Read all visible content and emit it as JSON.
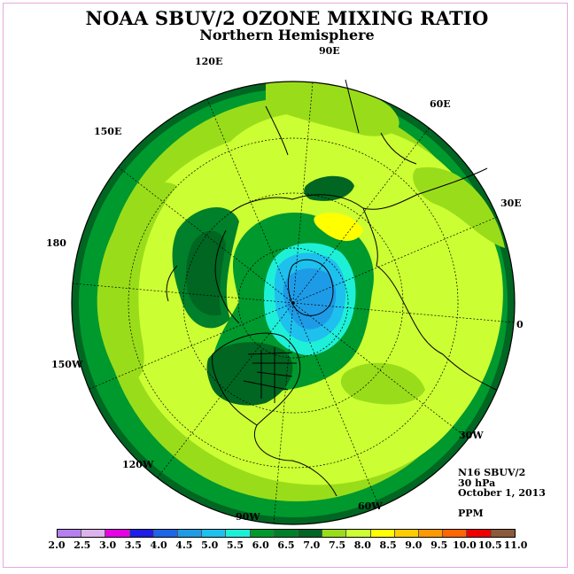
{
  "title": "NOAA SBUV/2 OZONE MIXING RATIO",
  "subtitle": "Northern Hemisphere",
  "longitude_labels": [
    "90E",
    "60E",
    "30E",
    "0",
    "30W",
    "60W",
    "90W",
    "120W",
    "150W",
    "180",
    "150E",
    "120E"
  ],
  "info": {
    "instrument": "N16 SBUV/2",
    "level": "30 hPa",
    "date": "October 1, 2013",
    "units": "PPM"
  },
  "colorbar": {
    "ticks": [
      "2.0",
      "2.5",
      "3.0",
      "3.5",
      "4.0",
      "4.5",
      "5.0",
      "5.5",
      "6.0",
      "6.5",
      "7.0",
      "7.5",
      "8.0",
      "8.5",
      "9.0",
      "9.5",
      "10.0",
      "10.5",
      "11.0"
    ],
    "colors": [
      "#b580ee",
      "#ddb3ee",
      "#e600e6",
      "#1e1ee6",
      "#1e66e6",
      "#1e9be6",
      "#1ec0ee",
      "#1ef0d8",
      "#00992e",
      "#00802a",
      "#006622",
      "#99dd1a",
      "#ccff33",
      "#ffff00",
      "#ffcc00",
      "#ff9900",
      "#ff6600",
      "#ee0000",
      "#8b5a3a"
    ]
  },
  "map_colors": {
    "ocean_rim": "#006622",
    "dark_green": "#00802a",
    "mid_green": "#00992e",
    "light_green": "#99dd1a",
    "yellow_green": "#ccff33",
    "yellow": "#ffff00",
    "cyan": "#1ef0d8",
    "light_blue": "#1ec0ee",
    "blue": "#1e9be6"
  }
}
